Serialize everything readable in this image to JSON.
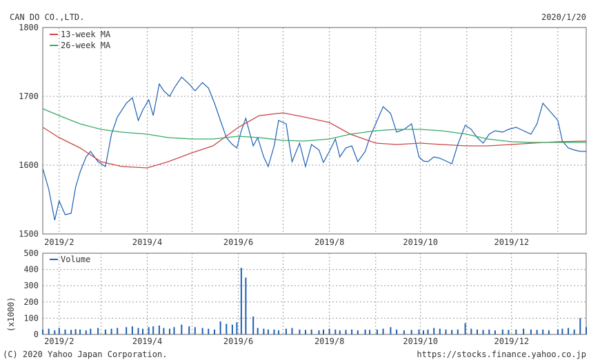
{
  "header": {
    "company": "CAN DO CO.,LTD.",
    "date": "2020/1/20"
  },
  "footer": {
    "copyright": "(C) 2020 Yahoo Japan Corporation.",
    "url": "https://stocks.finance.yahoo.co.jp"
  },
  "colors": {
    "price": "#1a5fb4",
    "ma13": "#cc4444",
    "ma26": "#33aa66",
    "volume": "#1a5fb4",
    "grid": "#999999",
    "frame": "#666666"
  },
  "chart_data": [
    {
      "type": "line",
      "title": "",
      "legend": [
        "13-week MA",
        "26-week MA"
      ],
      "legend_position": "top-left",
      "grid": true,
      "xlim": [
        "2019-01-21",
        "2020-01-20"
      ],
      "x_ticks": [
        {
          "date": "2019-02-01",
          "label": "2019/2"
        },
        {
          "date": "2019-04-01",
          "label": "2019/4"
        },
        {
          "date": "2019-06-01",
          "label": "2019/6"
        },
        {
          "date": "2019-08-01",
          "label": "2019/8"
        },
        {
          "date": "2019-10-01",
          "label": "2019/10"
        },
        {
          "date": "2019-12-01",
          "label": "2019/12"
        }
      ],
      "ylim": [
        1500,
        1800
      ],
      "y_ticks": [
        1500,
        1600,
        1700,
        1800
      ],
      "series": [
        {
          "name": "",
          "key": "price",
          "x": [
            "2019-01-21",
            "2019-01-25",
            "2019-01-29",
            "2019-02-01",
            "2019-02-05",
            "2019-02-09",
            "2019-02-12",
            "2019-02-15",
            "2019-02-19",
            "2019-02-22",
            "2019-02-27",
            "2019-03-04",
            "2019-03-08",
            "2019-03-12",
            "2019-03-18",
            "2019-03-22",
            "2019-03-26",
            "2019-03-29",
            "2019-04-02",
            "2019-04-05",
            "2019-04-09",
            "2019-04-12",
            "2019-04-16",
            "2019-04-19",
            "2019-04-24",
            "2019-04-29",
            "2019-05-03",
            "2019-05-08",
            "2019-05-12",
            "2019-05-16",
            "2019-05-20",
            "2019-05-24",
            "2019-05-28",
            "2019-05-31",
            "2019-06-03",
            "2019-06-06",
            "2019-06-11",
            "2019-06-14",
            "2019-06-18",
            "2019-06-21",
            "2019-06-25",
            "2019-06-28",
            "2019-07-03",
            "2019-07-07",
            "2019-07-12",
            "2019-07-16",
            "2019-07-20",
            "2019-07-25",
            "2019-07-28",
            "2019-08-01",
            "2019-08-05",
            "2019-08-08",
            "2019-08-12",
            "2019-08-16",
            "2019-08-20",
            "2019-08-25",
            "2019-08-28",
            "2019-09-02",
            "2019-09-06",
            "2019-09-11",
            "2019-09-15",
            "2019-09-20",
            "2019-09-25",
            "2019-09-30",
            "2019-10-03",
            "2019-10-06",
            "2019-10-10",
            "2019-10-14",
            "2019-10-18",
            "2019-10-22",
            "2019-10-26",
            "2019-10-31",
            "2019-11-04",
            "2019-11-08",
            "2019-11-12",
            "2019-11-16",
            "2019-11-20",
            "2019-11-25",
            "2019-11-29",
            "2019-12-04",
            "2019-12-09",
            "2019-12-14",
            "2019-12-18",
            "2019-12-22",
            "2019-12-26",
            "2020-01-01",
            "2020-01-04",
            "2020-01-08",
            "2020-01-12",
            "2020-01-16",
            "2020-01-20"
          ],
          "values": [
            1595,
            1565,
            1520,
            1548,
            1528,
            1530,
            1568,
            1590,
            1612,
            1620,
            1605,
            1598,
            1645,
            1670,
            1690,
            1698,
            1665,
            1680,
            1695,
            1672,
            1718,
            1708,
            1700,
            1712,
            1728,
            1718,
            1708,
            1720,
            1712,
            1690,
            1665,
            1640,
            1630,
            1625,
            1650,
            1668,
            1628,
            1640,
            1612,
            1598,
            1628,
            1665,
            1660,
            1605,
            1632,
            1598,
            1630,
            1622,
            1604,
            1620,
            1638,
            1612,
            1625,
            1628,
            1605,
            1620,
            1640,
            1665,
            1685,
            1675,
            1648,
            1652,
            1660,
            1612,
            1606,
            1605,
            1612,
            1610,
            1606,
            1602,
            1630,
            1658,
            1652,
            1640,
            1632,
            1645,
            1650,
            1648,
            1652,
            1655,
            1650,
            1645,
            1660,
            1690,
            1680,
            1665,
            1635,
            1625,
            1622,
            1620,
            1620
          ]
        },
        {
          "name": "13-week MA",
          "key": "ma13",
          "x": [
            "2019-01-21",
            "2019-02-01",
            "2019-02-15",
            "2019-03-01",
            "2019-03-15",
            "2019-04-01",
            "2019-04-15",
            "2019-05-01",
            "2019-05-15",
            "2019-06-01",
            "2019-06-15",
            "2019-07-01",
            "2019-07-15",
            "2019-08-01",
            "2019-08-15",
            "2019-09-01",
            "2019-09-15",
            "2019-10-01",
            "2019-10-15",
            "2019-11-01",
            "2019-11-15",
            "2019-12-01",
            "2019-12-15",
            "2020-01-01",
            "2020-01-20"
          ],
          "values": [
            1655,
            1640,
            1625,
            1605,
            1598,
            1596,
            1605,
            1618,
            1628,
            1655,
            1672,
            1676,
            1670,
            1662,
            1645,
            1632,
            1630,
            1632,
            1630,
            1628,
            1628,
            1630,
            1632,
            1634,
            1635
          ]
        },
        {
          "name": "26-week MA",
          "key": "ma26",
          "x": [
            "2019-01-21",
            "2019-02-01",
            "2019-02-15",
            "2019-03-01",
            "2019-03-15",
            "2019-04-01",
            "2019-04-15",
            "2019-05-01",
            "2019-05-15",
            "2019-06-01",
            "2019-06-15",
            "2019-07-01",
            "2019-07-15",
            "2019-08-01",
            "2019-08-15",
            "2019-09-01",
            "2019-09-15",
            "2019-10-01",
            "2019-10-15",
            "2019-11-01",
            "2019-11-15",
            "2019-12-01",
            "2019-12-15",
            "2020-01-01",
            "2020-01-20"
          ],
          "values": [
            1682,
            1672,
            1660,
            1652,
            1648,
            1645,
            1640,
            1638,
            1638,
            1642,
            1640,
            1636,
            1635,
            1638,
            1645,
            1650,
            1652,
            1652,
            1650,
            1645,
            1638,
            1634,
            1633,
            1633,
            1633
          ]
        }
      ]
    },
    {
      "type": "bar",
      "title": "",
      "legend": [
        "Volume"
      ],
      "legend_position": "top-left",
      "grid": true,
      "ylabel": "(x1000)",
      "ylim": [
        0,
        500
      ],
      "y_ticks": [
        0,
        100,
        200,
        300,
        400,
        500
      ],
      "x_ticks": [
        "2019/2",
        "2019/4",
        "2019/6",
        "2019/8",
        "2019/10",
        "2019/12"
      ],
      "series": [
        {
          "name": "Volume",
          "x": [
            "2019-01-21",
            "2019-01-25",
            "2019-01-29",
            "2019-02-01",
            "2019-02-05",
            "2019-02-09",
            "2019-02-12",
            "2019-02-15",
            "2019-02-19",
            "2019-02-22",
            "2019-02-27",
            "2019-03-04",
            "2019-03-08",
            "2019-03-12",
            "2019-03-18",
            "2019-03-22",
            "2019-03-26",
            "2019-03-29",
            "2019-04-02",
            "2019-04-05",
            "2019-04-09",
            "2019-04-12",
            "2019-04-16",
            "2019-04-19",
            "2019-04-24",
            "2019-04-29",
            "2019-05-03",
            "2019-05-08",
            "2019-05-12",
            "2019-05-16",
            "2019-05-20",
            "2019-05-24",
            "2019-05-28",
            "2019-05-31",
            "2019-06-03",
            "2019-06-06",
            "2019-06-11",
            "2019-06-14",
            "2019-06-18",
            "2019-06-21",
            "2019-06-25",
            "2019-06-28",
            "2019-07-03",
            "2019-07-07",
            "2019-07-12",
            "2019-07-16",
            "2019-07-20",
            "2019-07-25",
            "2019-07-28",
            "2019-08-01",
            "2019-08-05",
            "2019-08-08",
            "2019-08-12",
            "2019-08-16",
            "2019-08-20",
            "2019-08-25",
            "2019-08-28",
            "2019-09-02",
            "2019-09-06",
            "2019-09-11",
            "2019-09-15",
            "2019-09-20",
            "2019-09-25",
            "2019-09-30",
            "2019-10-03",
            "2019-10-06",
            "2019-10-10",
            "2019-10-14",
            "2019-10-18",
            "2019-10-22",
            "2019-10-26",
            "2019-10-31",
            "2019-11-04",
            "2019-11-08",
            "2019-11-12",
            "2019-11-16",
            "2019-11-20",
            "2019-11-25",
            "2019-11-29",
            "2019-12-04",
            "2019-12-09",
            "2019-12-14",
            "2019-12-18",
            "2019-12-22",
            "2019-12-26",
            "2020-01-01",
            "2020-01-04",
            "2020-01-08",
            "2020-01-12",
            "2020-01-16",
            "2020-01-20"
          ],
          "values": [
            30,
            35,
            25,
            40,
            30,
            28,
            32,
            30,
            25,
            35,
            40,
            30,
            35,
            40,
            45,
            50,
            40,
            35,
            45,
            50,
            55,
            40,
            35,
            45,
            60,
            50,
            45,
            40,
            35,
            30,
            80,
            65,
            60,
            75,
            410,
            350,
            110,
            40,
            35,
            30,
            30,
            25,
            35,
            40,
            30,
            28,
            30,
            25,
            30,
            35,
            30,
            25,
            28,
            30,
            25,
            30,
            28,
            30,
            35,
            45,
            30,
            25,
            28,
            30,
            25,
            30,
            40,
            35,
            30,
            28,
            30,
            70,
            35,
            30,
            28,
            30,
            25,
            30,
            28,
            30,
            35,
            30,
            28,
            30,
            25,
            30,
            35,
            40,
            30,
            100,
            45
          ]
        }
      ]
    }
  ]
}
